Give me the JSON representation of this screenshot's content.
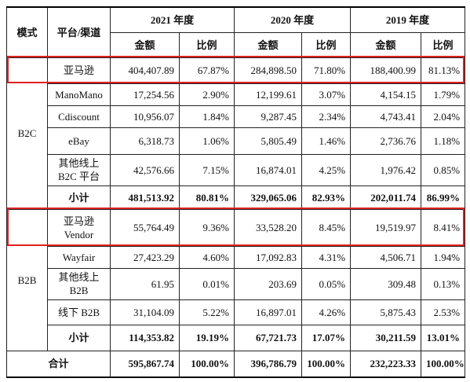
{
  "table": {
    "header": {
      "mode": "模式",
      "channel": "平台/渠道",
      "years": [
        "2021 年度",
        "2020 年度",
        "2019 年度"
      ],
      "subheaders": [
        "金额",
        "比例",
        "金额",
        "比例",
        "金额",
        "比例"
      ]
    },
    "groups": [
      {
        "mode": "B2C",
        "rows": [
          [
            "亚马逊",
            "404,407.89",
            "67.87%",
            "284,898.50",
            "71.80%",
            "188,400.99",
            "81.13%"
          ],
          [
            "ManoMano",
            "17,254.56",
            "2.90%",
            "12,199.61",
            "3.07%",
            "4,154.15",
            "1.79%"
          ],
          [
            "Cdiscount",
            "10,956.07",
            "1.84%",
            "9,287.45",
            "2.34%",
            "4,743.41",
            "2.04%"
          ],
          [
            "eBay",
            "6,318.73",
            "1.06%",
            "5,805.49",
            "1.46%",
            "2,736.76",
            "1.18%"
          ],
          [
            "其他线上\nB2C 平台",
            "42,576.66",
            "7.15%",
            "16,874.01",
            "4.25%",
            "1,976.42",
            "0.85%"
          ],
          [
            "小计",
            "481,513.92",
            "80.81%",
            "329,065.06",
            "82.93%",
            "202,011.74",
            "86.99%"
          ]
        ]
      },
      {
        "mode": "B2B",
        "rows": [
          [
            "亚马逊\nVendor",
            "55,764.49",
            "9.36%",
            "33,528.20",
            "8.45%",
            "19,519.97",
            "8.41%"
          ],
          [
            "Wayfair",
            "27,423.29",
            "4.60%",
            "17,092.83",
            "4.31%",
            "4,506.71",
            "1.94%"
          ],
          [
            "其他线上\nB2B",
            "61.95",
            "0.01%",
            "203.69",
            "0.05%",
            "309.48",
            "0.13%"
          ],
          [
            "线下 B2B",
            "31,104.09",
            "5.22%",
            "16,897.01",
            "4.26%",
            "5,875.43",
            "2.53%"
          ],
          [
            "小计",
            "114,353.82",
            "19.19%",
            "67,721.73",
            "17.07%",
            "30,211.59",
            "13.01%"
          ]
        ]
      }
    ],
    "total": [
      "合计",
      "595,867.74",
      "100.00%",
      "396,786.79",
      "100.00%",
      "232,223.33",
      "100.00%"
    ]
  }
}
